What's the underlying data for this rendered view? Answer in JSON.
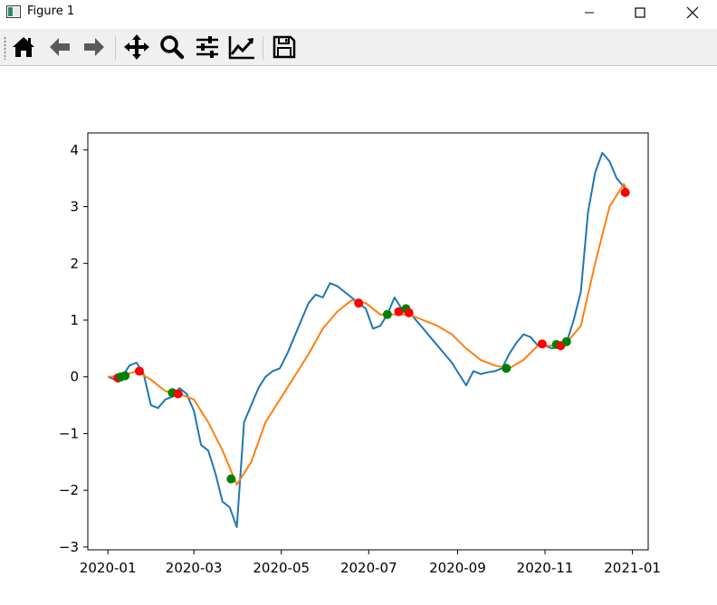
{
  "window": {
    "title": "Figure 1"
  },
  "toolbar": {
    "buttons": [
      {
        "name": "home-button",
        "icon": "home-icon"
      },
      {
        "name": "back-button",
        "icon": "arrow-left-icon"
      },
      {
        "name": "forward-button",
        "icon": "arrow-right-icon"
      },
      {
        "name": "pan-button",
        "icon": "move-icon"
      },
      {
        "name": "zoom-button",
        "icon": "magnifier-icon"
      },
      {
        "name": "configure-subplots-button",
        "icon": "sliders-icon"
      },
      {
        "name": "edit-axes-button",
        "icon": "line-chart-icon"
      },
      {
        "name": "save-button",
        "icon": "floppy-disk-icon"
      }
    ]
  },
  "chart_data": {
    "type": "line",
    "title": "",
    "xlabel": "",
    "ylabel": "",
    "xlim": [
      "2019-12-18",
      "2021-01-12"
    ],
    "ylim": [
      -3.05,
      4.3
    ],
    "x_ticks": [
      "2020-01-01",
      "2020-03-01",
      "2020-05-01",
      "2020-07-01",
      "2020-09-01",
      "2020-11-01",
      "2021-01-01"
    ],
    "x_tick_labels": [
      "2020-01",
      "2020-03",
      "2020-05",
      "2020-07",
      "2020-09",
      "2020-11",
      "2021-01"
    ],
    "y_ticks": [
      4,
      3,
      2,
      1,
      0,
      -1,
      -2,
      -3
    ],
    "y_tick_labels": [
      "4",
      "3",
      "2",
      "1",
      "0",
      "−1",
      "−2",
      "−3"
    ],
    "grid": false,
    "series": [
      {
        "color": "#1f77b4",
        "x": [
          "2020-01-01",
          "2020-01-06",
          "2020-01-11",
          "2020-01-16",
          "2020-01-21",
          "2020-01-26",
          "2020-01-31",
          "2020-02-05",
          "2020-02-10",
          "2020-02-15",
          "2020-02-20",
          "2020-02-25",
          "2020-03-01",
          "2020-03-06",
          "2020-03-11",
          "2020-03-16",
          "2020-03-21",
          "2020-03-26",
          "2020-03-31",
          "2020-04-05",
          "2020-04-10",
          "2020-04-15",
          "2020-04-20",
          "2020-04-25",
          "2020-04-30",
          "2020-05-05",
          "2020-05-10",
          "2020-05-15",
          "2020-05-20",
          "2020-05-25",
          "2020-05-30",
          "2020-06-04",
          "2020-06-09",
          "2020-06-14",
          "2020-06-19",
          "2020-06-24",
          "2020-06-29",
          "2020-07-04",
          "2020-07-09",
          "2020-07-14",
          "2020-07-19",
          "2020-07-24",
          "2020-07-29",
          "2020-08-03",
          "2020-08-08",
          "2020-08-13",
          "2020-08-18",
          "2020-08-23",
          "2020-08-28",
          "2020-09-02",
          "2020-09-07",
          "2020-09-12",
          "2020-09-17",
          "2020-09-22",
          "2020-09-27",
          "2020-10-02",
          "2020-10-07",
          "2020-10-12",
          "2020-10-17",
          "2020-10-22",
          "2020-10-27",
          "2020-11-01",
          "2020-11-06",
          "2020-11-11",
          "2020-11-16",
          "2020-11-21",
          "2020-11-26",
          "2020-12-01",
          "2020-12-06",
          "2020-12-11",
          "2020-12-16",
          "2020-12-21",
          "2020-12-26",
          "2020-12-28"
        ],
        "y": [
          0.0,
          -0.05,
          0.0,
          0.2,
          0.25,
          0.05,
          -0.5,
          -0.55,
          -0.4,
          -0.35,
          -0.2,
          -0.3,
          -0.6,
          -1.2,
          -1.3,
          -1.7,
          -2.2,
          -2.3,
          -2.65,
          -0.8,
          -0.5,
          -0.2,
          0.0,
          0.1,
          0.15,
          0.4,
          0.7,
          1.0,
          1.3,
          1.45,
          1.4,
          1.65,
          1.6,
          1.5,
          1.4,
          1.3,
          1.2,
          0.85,
          0.9,
          1.1,
          1.4,
          1.2,
          1.15,
          1.0,
          0.85,
          0.7,
          0.55,
          0.4,
          0.25,
          0.05,
          -0.15,
          0.1,
          0.05,
          0.08,
          0.1,
          0.15,
          0.4,
          0.6,
          0.75,
          0.7,
          0.55,
          0.55,
          0.5,
          0.55,
          0.6,
          1.0,
          1.5,
          2.9,
          3.6,
          3.95,
          3.8,
          3.5,
          3.35,
          3.2
        ]
      },
      {
        "color": "#ff7f0e",
        "x": [
          "2020-01-01",
          "2020-01-11",
          "2020-01-21",
          "2020-01-31",
          "2020-02-10",
          "2020-02-20",
          "2020-03-01",
          "2020-03-11",
          "2020-03-21",
          "2020-03-31",
          "2020-04-10",
          "2020-04-20",
          "2020-04-30",
          "2020-05-10",
          "2020-05-20",
          "2020-05-30",
          "2020-06-09",
          "2020-06-19",
          "2020-06-29",
          "2020-07-09",
          "2020-07-19",
          "2020-07-29",
          "2020-08-08",
          "2020-08-18",
          "2020-08-28",
          "2020-09-07",
          "2020-09-17",
          "2020-09-27",
          "2020-10-07",
          "2020-10-17",
          "2020-10-27",
          "2020-11-06",
          "2020-11-16",
          "2020-11-26",
          "2020-12-06",
          "2020-12-16",
          "2020-12-26",
          "2020-12-28"
        ],
        "y": [
          0.0,
          0.02,
          0.1,
          -0.05,
          -0.25,
          -0.3,
          -0.4,
          -0.8,
          -1.3,
          -1.9,
          -1.5,
          -0.8,
          -0.4,
          0.0,
          0.4,
          0.85,
          1.15,
          1.35,
          1.3,
          1.1,
          1.1,
          1.1,
          1.0,
          0.9,
          0.75,
          0.5,
          0.3,
          0.2,
          0.15,
          0.3,
          0.55,
          0.55,
          0.6,
          0.9,
          2.0,
          3.0,
          3.4,
          3.3
        ]
      }
    ],
    "markers": [
      {
        "x": "2020-01-08",
        "y": -0.02,
        "color": "#ff0000"
      },
      {
        "x": "2020-01-10",
        "y": 0.0,
        "color": "#008000"
      },
      {
        "x": "2020-01-13",
        "y": 0.02,
        "color": "#008000"
      },
      {
        "x": "2020-01-23",
        "y": 0.1,
        "color": "#ff0000"
      },
      {
        "x": "2020-02-15",
        "y": -0.28,
        "color": "#008000"
      },
      {
        "x": "2020-02-19",
        "y": -0.3,
        "color": "#ff0000"
      },
      {
        "x": "2020-03-27",
        "y": -1.8,
        "color": "#008000"
      },
      {
        "x": "2020-06-24",
        "y": 1.3,
        "color": "#ff0000"
      },
      {
        "x": "2020-07-14",
        "y": 1.1,
        "color": "#008000"
      },
      {
        "x": "2020-07-22",
        "y": 1.15,
        "color": "#ff0000"
      },
      {
        "x": "2020-07-27",
        "y": 1.2,
        "color": "#008000"
      },
      {
        "x": "2020-07-29",
        "y": 1.13,
        "color": "#ff0000"
      },
      {
        "x": "2020-10-05",
        "y": 0.15,
        "color": "#008000"
      },
      {
        "x": "2020-10-30",
        "y": 0.58,
        "color": "#ff0000"
      },
      {
        "x": "2020-11-09",
        "y": 0.57,
        "color": "#008000"
      },
      {
        "x": "2020-11-12",
        "y": 0.55,
        "color": "#ff0000"
      },
      {
        "x": "2020-11-16",
        "y": 0.62,
        "color": "#008000"
      },
      {
        "x": "2020-12-27",
        "y": 3.25,
        "color": "#ff0000"
      }
    ]
  }
}
